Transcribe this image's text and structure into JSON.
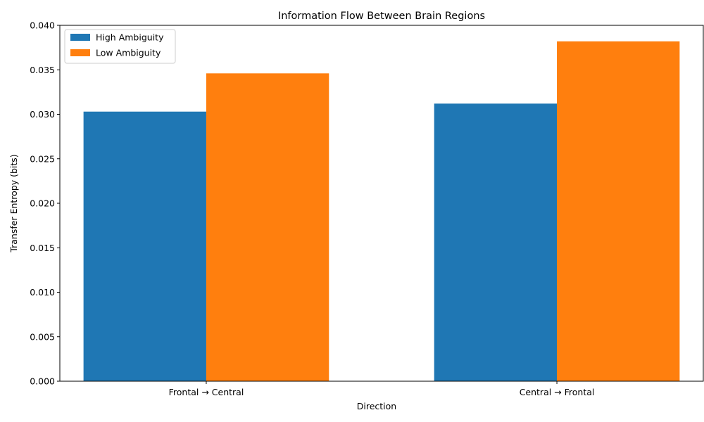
{
  "chart_data": {
    "type": "bar",
    "title": "Information Flow Between Brain Regions",
    "xlabel": "Direction",
    "ylabel": "Transfer Entropy (bits)",
    "categories": [
      "Frontal → Central",
      "Central → Frontal"
    ],
    "series": [
      {
        "name": "High Ambiguity",
        "color": "#1f77b4",
        "values": [
          0.0303,
          0.0312
        ]
      },
      {
        "name": "Low Ambiguity",
        "color": "#ff7f0e",
        "values": [
          0.0346,
          0.0382
        ]
      }
    ],
    "ylim": [
      0,
      0.04
    ],
    "yticks": [
      "0.000",
      "0.005",
      "0.010",
      "0.015",
      "0.020",
      "0.025",
      "0.030",
      "0.035",
      "0.040"
    ],
    "grid": false,
    "legend": "top-left"
  }
}
